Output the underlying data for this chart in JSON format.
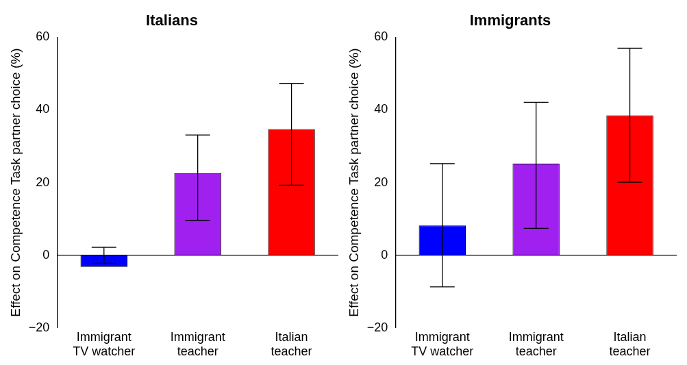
{
  "chart_data": [
    {
      "type": "bar",
      "title": "Italians",
      "ylabel": "Effect on Competence Task partner choice (%)",
      "categories": [
        "Immigrant TV watcher",
        "Immigrant teacher",
        "Italian teacher"
      ],
      "values": [
        -3.2,
        22.6,
        34.7
      ],
      "colors": [
        "#0000ff",
        "#a020f0",
        "#ff0000"
      ],
      "errors": [
        [
          -2.2,
          2.2
        ],
        [
          9.6,
          33.1
        ],
        [
          19.3,
          47.3
        ]
      ],
      "ylim": [
        -20,
        60
      ],
      "yticks": [
        -20,
        0,
        20,
        40,
        60
      ],
      "grid": false,
      "legend": false,
      "ref_lines": [
        {
          "axis": "y",
          "value": 0
        }
      ]
    },
    {
      "type": "bar",
      "title": "Immigrants",
      "ylabel": "Effect on Competence Task partner choice (%)",
      "categories": [
        "Immigrant TV watcher",
        "Immigrant teacher",
        "Italian teacher"
      ],
      "values": [
        8.2,
        25.2,
        38.5
      ],
      "colors": [
        "#0000ff",
        "#a020f0",
        "#ff0000"
      ],
      "errors": [
        [
          -8.7,
          25.2
        ],
        [
          7.4,
          42.1
        ],
        [
          20.1,
          57.0
        ]
      ],
      "ylim": [
        -20,
        60
      ],
      "yticks": [
        -20,
        0,
        20,
        40,
        60
      ],
      "grid": false,
      "legend": false,
      "ref_lines": [
        {
          "axis": "y",
          "value": 0
        }
      ]
    }
  ]
}
